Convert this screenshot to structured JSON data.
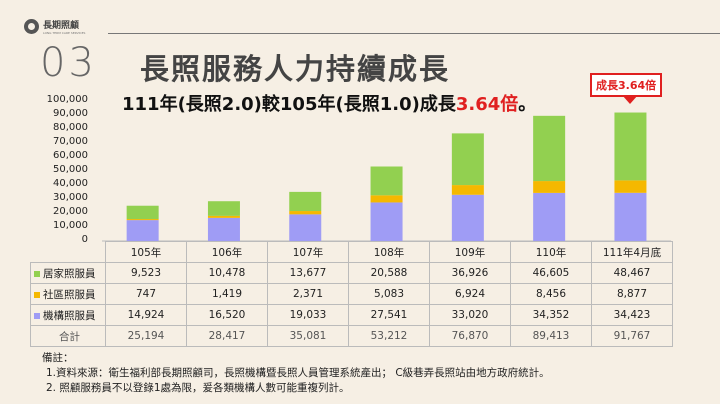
{
  "logo": {
    "text": "長期照顧",
    "sub": "LONG TERM CARE SERVICES"
  },
  "page_number": "03",
  "title": "長照服務人力持續成長",
  "subtitle": {
    "prefix": "111年(長照2.0)較105年(長照1.0)成長",
    "highlight": "3.64倍",
    "suffix": "。"
  },
  "callout": "成長3.64倍",
  "chart_data": {
    "type": "bar",
    "stacked": true,
    "categories": [
      "105年",
      "106年",
      "107年",
      "108年",
      "109年",
      "110年",
      "111年4月底"
    ],
    "ylim": [
      0,
      100000
    ],
    "yticks": [
      "0",
      "10,000",
      "20,000",
      "30,000",
      "40,000",
      "50,000",
      "60,000",
      "70,000",
      "80,000",
      "90,000",
      "100,000"
    ],
    "series": [
      {
        "name": "機構照服員",
        "color": "#9f9cf5",
        "values": [
          14924,
          16520,
          19033,
          27541,
          33020,
          34352,
          34423
        ],
        "labels": [
          "14,924",
          "16,520",
          "19,033",
          "27,541",
          "33,020",
          "34,352",
          "34,423"
        ]
      },
      {
        "name": "社區照服員",
        "color": "#f5b800",
        "values": [
          747,
          1419,
          2371,
          5083,
          6924,
          8456,
          8877
        ],
        "labels": [
          "747",
          "1,419",
          "2,371",
          "5,083",
          "6,924",
          "8,456",
          "8,877"
        ]
      },
      {
        "name": "居家照服員",
        "color": "#92d050",
        "values": [
          9523,
          10478,
          13677,
          20588,
          36926,
          46605,
          48467
        ],
        "labels": [
          "9,523",
          "10,478",
          "13,677",
          "20,588",
          "36,926",
          "46,605",
          "48,467"
        ]
      }
    ],
    "total_label": "合計",
    "totals": [
      "25,194",
      "28,417",
      "35,081",
      "53,212",
      "76,870",
      "89,413",
      "91,767"
    ]
  },
  "notes": [
    "備註：",
    "1.資料來源：衛生福利部長期照顧司，長照機構暨長照人員管理系統產出； C級巷弄長照站由地方政府統計。",
    "2. 照顧服務員不以登錄1處為限，爰各類機構人數可能重複列計。"
  ]
}
